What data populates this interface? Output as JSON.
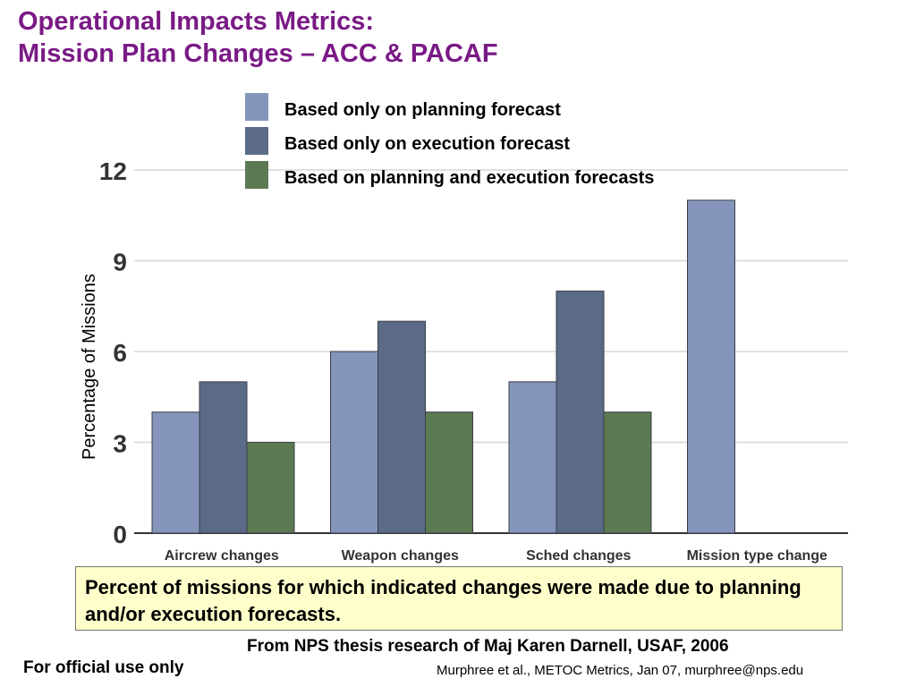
{
  "slide": {
    "title_line1": "Operational Impacts Metrics:",
    "title_line2": "Mission Plan Changes – ACC & PACAF",
    "caption": "Percent of missions for which indicated changes were made due to planning and/or execution forecasts.",
    "source": "From NPS thesis research of Maj Karen Darnell, USAF, 2006",
    "footer_left": "For official use only",
    "footer_right": "Murphree et al., METOC Metrics, Jan 07, murphree@nps.edu"
  },
  "chart_data": {
    "type": "bar",
    "categories": [
      "Aircrew changes",
      "Weapon changes",
      "Sched changes",
      "Mission type change"
    ],
    "series": [
      {
        "name": "Based only on planning forecast",
        "values": [
          4,
          6,
          5,
          11
        ],
        "color": "#8494bb"
      },
      {
        "name": "Based only on execution forecast",
        "values": [
          5,
          7,
          8,
          0
        ],
        "color": "#5b6a86"
      },
      {
        "name": "Based on planning and execution forecasts",
        "values": [
          3,
          4,
          4,
          0
        ],
        "color": "#5c7a52"
      }
    ],
    "ylabel": "Percentage of Missions",
    "ylim": [
      0,
      12
    ],
    "yticks": [
      0,
      3,
      6,
      9,
      12
    ],
    "grid": true,
    "legend": "top"
  }
}
